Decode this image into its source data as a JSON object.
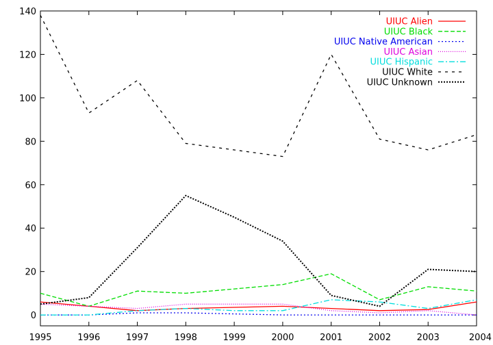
{
  "chart_data": {
    "type": "line",
    "title": "",
    "xlabel": "",
    "ylabel": "",
    "x": [
      1995,
      1996,
      1997,
      1998,
      1999,
      2000,
      2001,
      2002,
      2003,
      2004
    ],
    "xlim": [
      1995,
      2004
    ],
    "ylim": [
      -5,
      140
    ],
    "yticks": [
      0,
      20,
      40,
      60,
      80,
      100,
      120,
      140
    ],
    "grid": false,
    "legend_position": "top-right",
    "series": [
      {
        "name": "UIUC Alien",
        "color": "#ff0000",
        "dash": "solid",
        "values": [
          6,
          4,
          2,
          3,
          3.5,
          4,
          3,
          2,
          2.5,
          6
        ]
      },
      {
        "name": "UIUC Black",
        "color": "#00dd00",
        "dash": "dashed",
        "values": [
          10,
          4,
          11,
          10,
          12,
          14,
          19,
          7,
          13,
          11
        ]
      },
      {
        "name": "UIUC Native American",
        "color": "#0000ee",
        "dash": "dotted",
        "values": [
          0,
          0,
          1,
          1,
          0.5,
          0,
          0,
          0,
          0,
          0
        ]
      },
      {
        "name": "UIUC Asian",
        "color": "#dd00dd",
        "dash": "dotted-fine",
        "values": [
          5,
          4,
          3,
          5,
          5,
          5,
          2,
          1,
          2,
          0
        ]
      },
      {
        "name": "UIUC Hispanic",
        "color": "#00dddd",
        "dash": "dashdot",
        "values": [
          0,
          0,
          2,
          3,
          2,
          2,
          7,
          6,
          3,
          7
        ]
      },
      {
        "name": "UIUC White",
        "color": "#000000",
        "dash": "sparse-dashed",
        "values": [
          138,
          93,
          108,
          79,
          76,
          73,
          120,
          81,
          76,
          83
        ]
      },
      {
        "name": "UIUC Unknown",
        "color": "#000000",
        "dash": "dense-dotted",
        "values": [
          5,
          8,
          31,
          55,
          45,
          34,
          9,
          4,
          21,
          20
        ]
      }
    ]
  }
}
